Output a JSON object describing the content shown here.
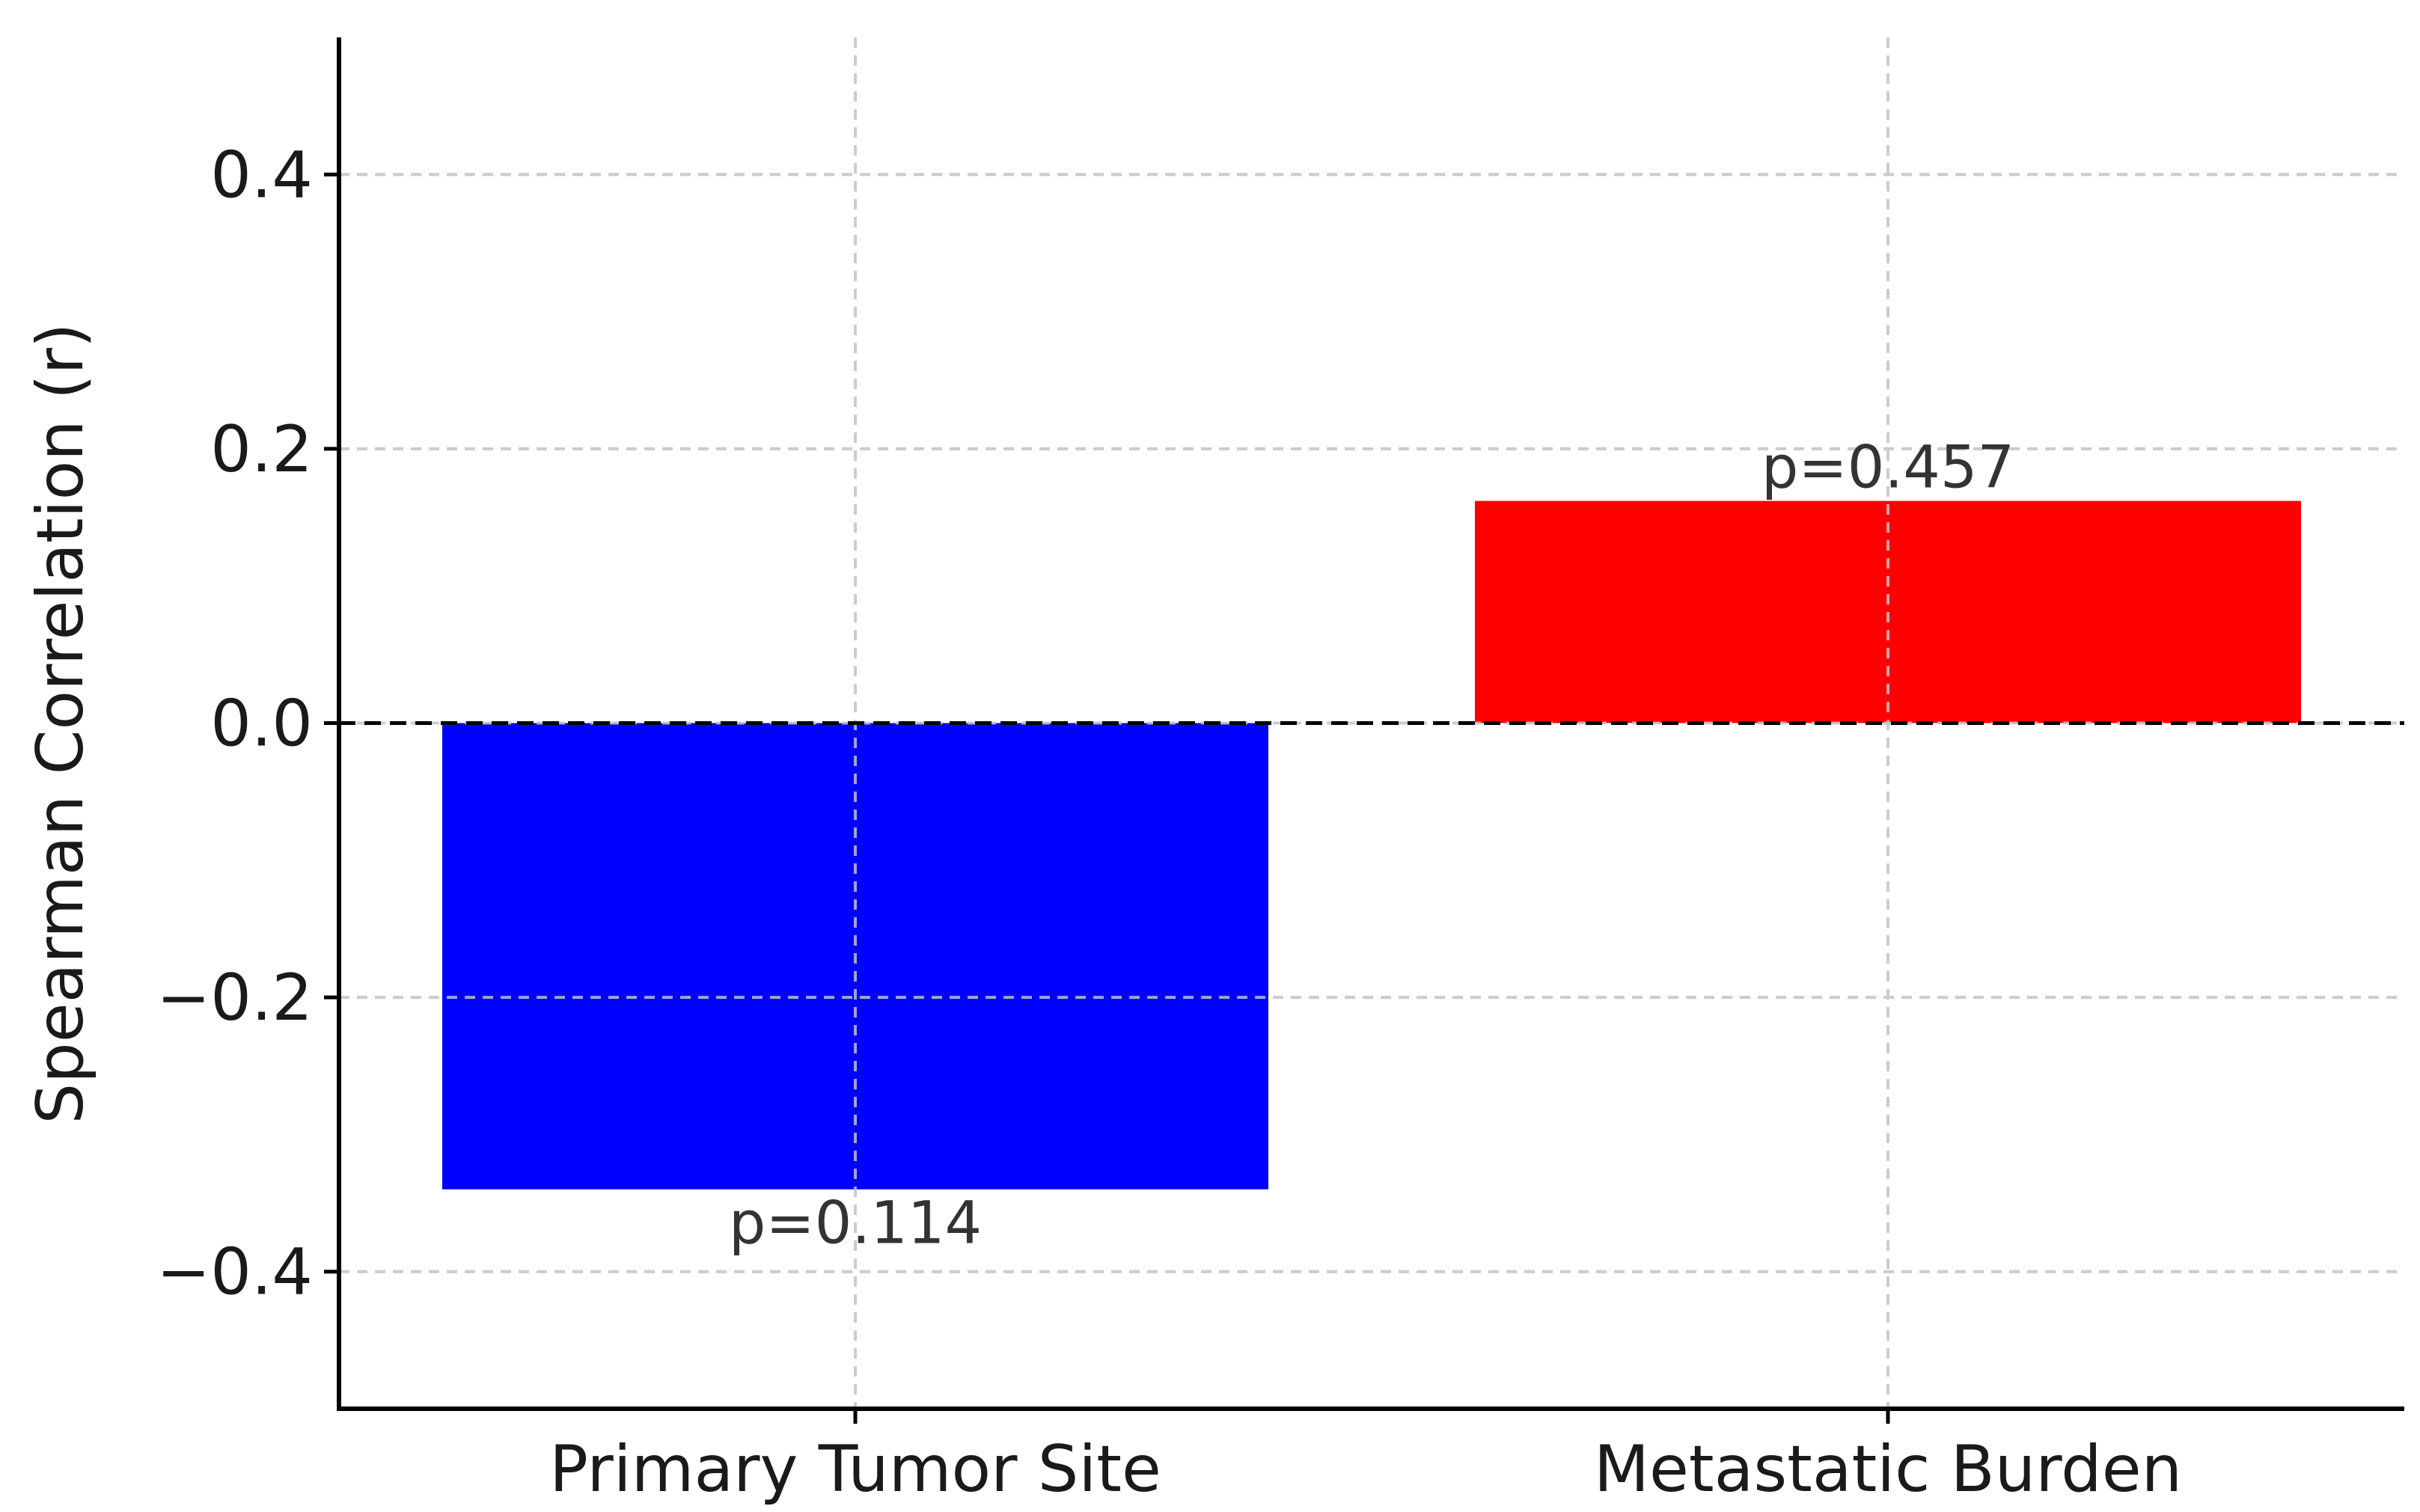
{
  "chart_data": {
    "type": "bar",
    "categories": [
      "Primary Tumor Site",
      "Metastatic Burden"
    ],
    "values": [
      -0.34,
      0.162
    ],
    "colors": [
      "#0000ff",
      "#ff0000"
    ],
    "annotations": [
      "p=0.114",
      "p=0.457"
    ],
    "ylabel": "Spearman Correlation (r)",
    "xlabel": "",
    "title": "",
    "ylim": [
      -0.5,
      0.5
    ],
    "yticks": [
      -0.4,
      -0.2,
      0.0,
      0.2,
      0.4
    ],
    "ytick_labels": [
      "−0.4",
      "−0.2",
      "0.0",
      "0.2",
      "0.4"
    ],
    "reference_line": 0.0,
    "grid": true
  }
}
